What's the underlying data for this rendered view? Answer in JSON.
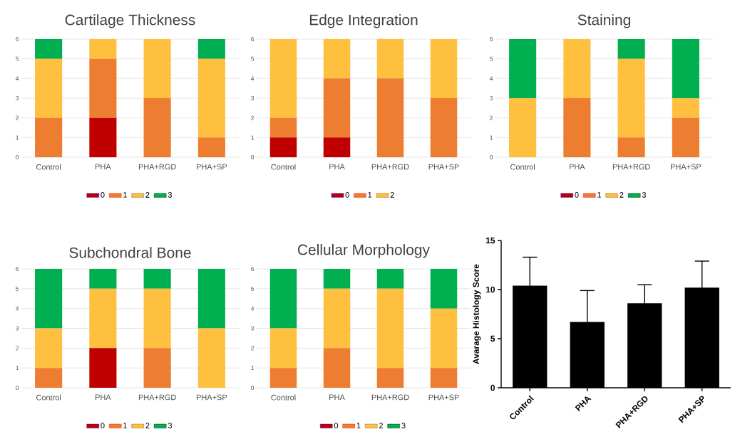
{
  "chart_data": [
    {
      "type": "bar",
      "stacked": true,
      "title": "Cartilage Thickness",
      "categories": [
        "Control",
        "PHA",
        "PHA+RGD",
        "PHA+SP"
      ],
      "ylim": [
        0,
        6
      ],
      "yticks": [
        0,
        1,
        2,
        3,
        4,
        5,
        6
      ],
      "grid": "y",
      "legend": "bottom",
      "series": [
        {
          "name": "0",
          "color": "#c00000",
          "values": [
            0,
            2,
            0,
            0
          ]
        },
        {
          "name": "1",
          "color": "#ed7d31",
          "values": [
            2,
            3,
            3,
            1
          ]
        },
        {
          "name": "2",
          "color": "#ffc03f",
          "values": [
            3,
            1,
            3,
            4
          ]
        },
        {
          "name": "3",
          "color": "#00b050",
          "values": [
            1,
            0,
            0,
            1
          ]
        }
      ]
    },
    {
      "type": "bar",
      "stacked": true,
      "title": "Edge Integration",
      "categories": [
        "Control",
        "PHA",
        "PHA+RGD",
        "PHA+SP"
      ],
      "ylim": [
        0,
        6
      ],
      "yticks": [
        0,
        1,
        2,
        3,
        4,
        5,
        6
      ],
      "grid": "y",
      "legend": "bottom",
      "series": [
        {
          "name": "0",
          "color": "#c00000",
          "values": [
            1,
            1,
            0,
            0
          ]
        },
        {
          "name": "1",
          "color": "#ed7d31",
          "values": [
            1,
            3,
            4,
            3
          ]
        },
        {
          "name": "2",
          "color": "#ffc03f",
          "values": [
            4,
            2,
            2,
            3
          ]
        }
      ]
    },
    {
      "type": "bar",
      "stacked": true,
      "title": "Staining",
      "categories": [
        "Control",
        "PHA",
        "PHA+RGD",
        "PHA+SP"
      ],
      "ylim": [
        0,
        6
      ],
      "yticks": [
        0,
        1,
        2,
        3,
        4,
        5,
        6
      ],
      "grid": "y",
      "legend": "bottom",
      "series": [
        {
          "name": "0",
          "color": "#c00000",
          "values": [
            0,
            0,
            0,
            0
          ]
        },
        {
          "name": "1",
          "color": "#ed7d31",
          "values": [
            0,
            3,
            1,
            2
          ]
        },
        {
          "name": "2",
          "color": "#ffc03f",
          "values": [
            3,
            3,
            4,
            1
          ]
        },
        {
          "name": "3",
          "color": "#00b050",
          "values": [
            3,
            0,
            1,
            3
          ]
        }
      ]
    },
    {
      "type": "bar",
      "stacked": true,
      "title": "Subchondral Bone",
      "categories": [
        "Control",
        "PHA",
        "PHA+RGD",
        "PHA+SP"
      ],
      "ylim": [
        0,
        6
      ],
      "yticks": [
        0,
        1,
        2,
        3,
        4,
        5,
        6
      ],
      "grid": "y",
      "legend": "bottom",
      "series": [
        {
          "name": "0",
          "color": "#c00000",
          "values": [
            0,
            2,
            0,
            0
          ]
        },
        {
          "name": "1",
          "color": "#ed7d31",
          "values": [
            1,
            0,
            2,
            0
          ]
        },
        {
          "name": "2",
          "color": "#ffc03f",
          "values": [
            2,
            3,
            3,
            3
          ]
        },
        {
          "name": "3",
          "color": "#00b050",
          "values": [
            3,
            1,
            1,
            3
          ]
        }
      ]
    },
    {
      "type": "bar",
      "stacked": true,
      "title": "Cellular Morphology",
      "categories": [
        "Control",
        "PHA",
        "PHA+RGD",
        "PHA+SP"
      ],
      "ylim": [
        0,
        6
      ],
      "yticks": [
        0,
        1,
        2,
        3,
        4,
        5,
        6
      ],
      "grid": "y",
      "legend": "bottom",
      "series": [
        {
          "name": "0",
          "color": "#c00000",
          "values": [
            0,
            0,
            0,
            0
          ]
        },
        {
          "name": "1",
          "color": "#ed7d31",
          "values": [
            1,
            2,
            1,
            1
          ]
        },
        {
          "name": "2",
          "color": "#ffc03f",
          "values": [
            2,
            3,
            4,
            3
          ]
        },
        {
          "name": "3",
          "color": "#00b050",
          "values": [
            3,
            1,
            1,
            2
          ]
        }
      ]
    },
    {
      "type": "bar",
      "ylabel": "Avarage Histology Score",
      "categories": [
        "Control",
        "PHA",
        "PHA+RGD",
        "PHA+SP"
      ],
      "ylim": [
        0,
        15
      ],
      "yticks": [
        0,
        5,
        10,
        15
      ],
      "series": [
        {
          "color": "#000000",
          "values": [
            10.4,
            6.7,
            8.6,
            10.2
          ],
          "errors": [
            2.9,
            3.2,
            1.9,
            2.7
          ]
        }
      ]
    }
  ]
}
